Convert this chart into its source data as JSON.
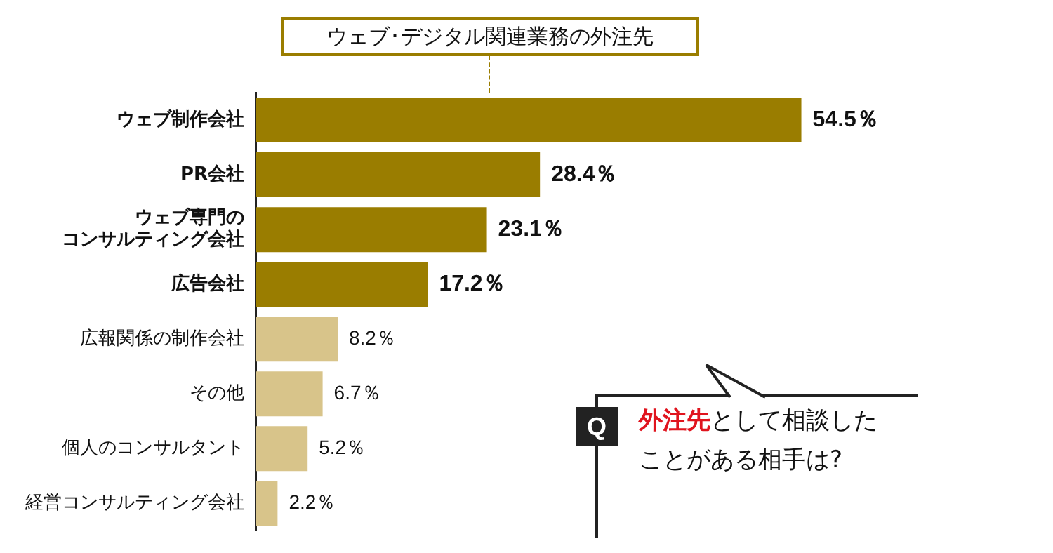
{
  "chart_data": {
    "type": "bar",
    "orientation": "horizontal",
    "title": "ウェブ･デジタル関連業務の外注先",
    "categories": [
      "ウェブ制作会社",
      "PR会社",
      "ウェブ専門のコンサルティング会社",
      "広告会社",
      "広報関係の制作会社",
      "その他",
      "個人のコンサルタント",
      "経営コンサルティング会社"
    ],
    "values": [
      54.5,
      28.4,
      23.1,
      17.2,
      8.2,
      6.7,
      5.2,
      2.2
    ],
    "value_labels": [
      "54.5％",
      "28.4％",
      "23.1％",
      "17.2％",
      "8.2％",
      "6.7％",
      "5.2％",
      "2.2％"
    ],
    "colors": [
      "#9a7d00",
      "#9a7d00",
      "#9a7d00",
      "#9a7d00",
      "#d8c48a",
      "#d8c48a",
      "#d8c48a",
      "#d8c48a"
    ],
    "annotations": [
      "Q",
      "外注先",
      "として相談したことがある相手は?"
    ],
    "grid": false,
    "legend": false
  }
}
